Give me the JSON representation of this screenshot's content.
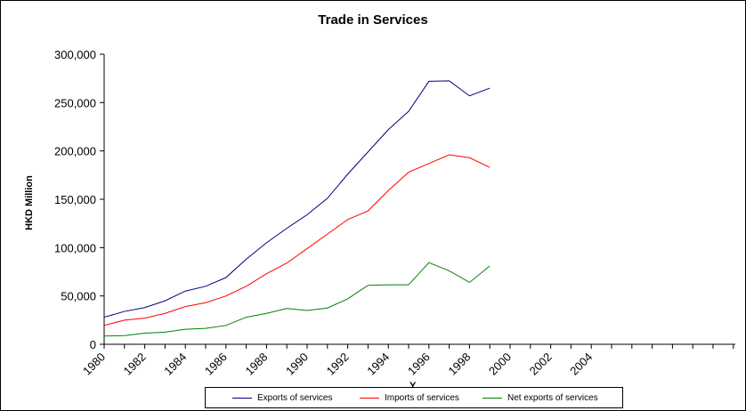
{
  "chart_data": {
    "type": "line",
    "title": "Trade in Services",
    "ylabel": "HKD Million",
    "xlabel": "Y",
    "ylim": [
      0,
      300000
    ],
    "yticks": [
      "0",
      "50,000",
      "100,000",
      "150,000",
      "200,000",
      "250,000",
      "300,000"
    ],
    "xticks": [
      "1980",
      "1982",
      "1984",
      "1986",
      "1988",
      "1990",
      "1992",
      "1994",
      "1996",
      "1998",
      "2000",
      "2002",
      "2004"
    ],
    "x": [
      1980,
      1981,
      1982,
      1983,
      1984,
      1985,
      1986,
      1987,
      1988,
      1989,
      1990,
      1991,
      1992,
      1993,
      1994,
      1995,
      1996,
      1997,
      1998,
      1999
    ],
    "grid": false,
    "legend_position": "bottom",
    "series": [
      {
        "name": "Exports of services",
        "color": "#000080",
        "values": [
          28000,
          34000,
          38000,
          45000,
          55000,
          60000,
          69000,
          88000,
          105000,
          120000,
          134000,
          151000,
          176000,
          199000,
          222000,
          241000,
          272000,
          272500,
          257000,
          265000
        ]
      },
      {
        "name": "Imports of services",
        "color": "#ff0000",
        "values": [
          19500,
          25000,
          27000,
          32000,
          39000,
          43000,
          50000,
          60000,
          73000,
          84000,
          99000,
          114000,
          129000,
          138000,
          159000,
          178000,
          187000,
          196000,
          193000,
          183000
        ]
      },
      {
        "name": "Net exports of services",
        "color": "#008000",
        "values": [
          8500,
          9000,
          11500,
          12500,
          15500,
          16500,
          19500,
          28000,
          32000,
          37000,
          35000,
          37500,
          47000,
          61000,
          61500,
          61500,
          84500,
          76000,
          64000,
          81000
        ]
      }
    ]
  }
}
